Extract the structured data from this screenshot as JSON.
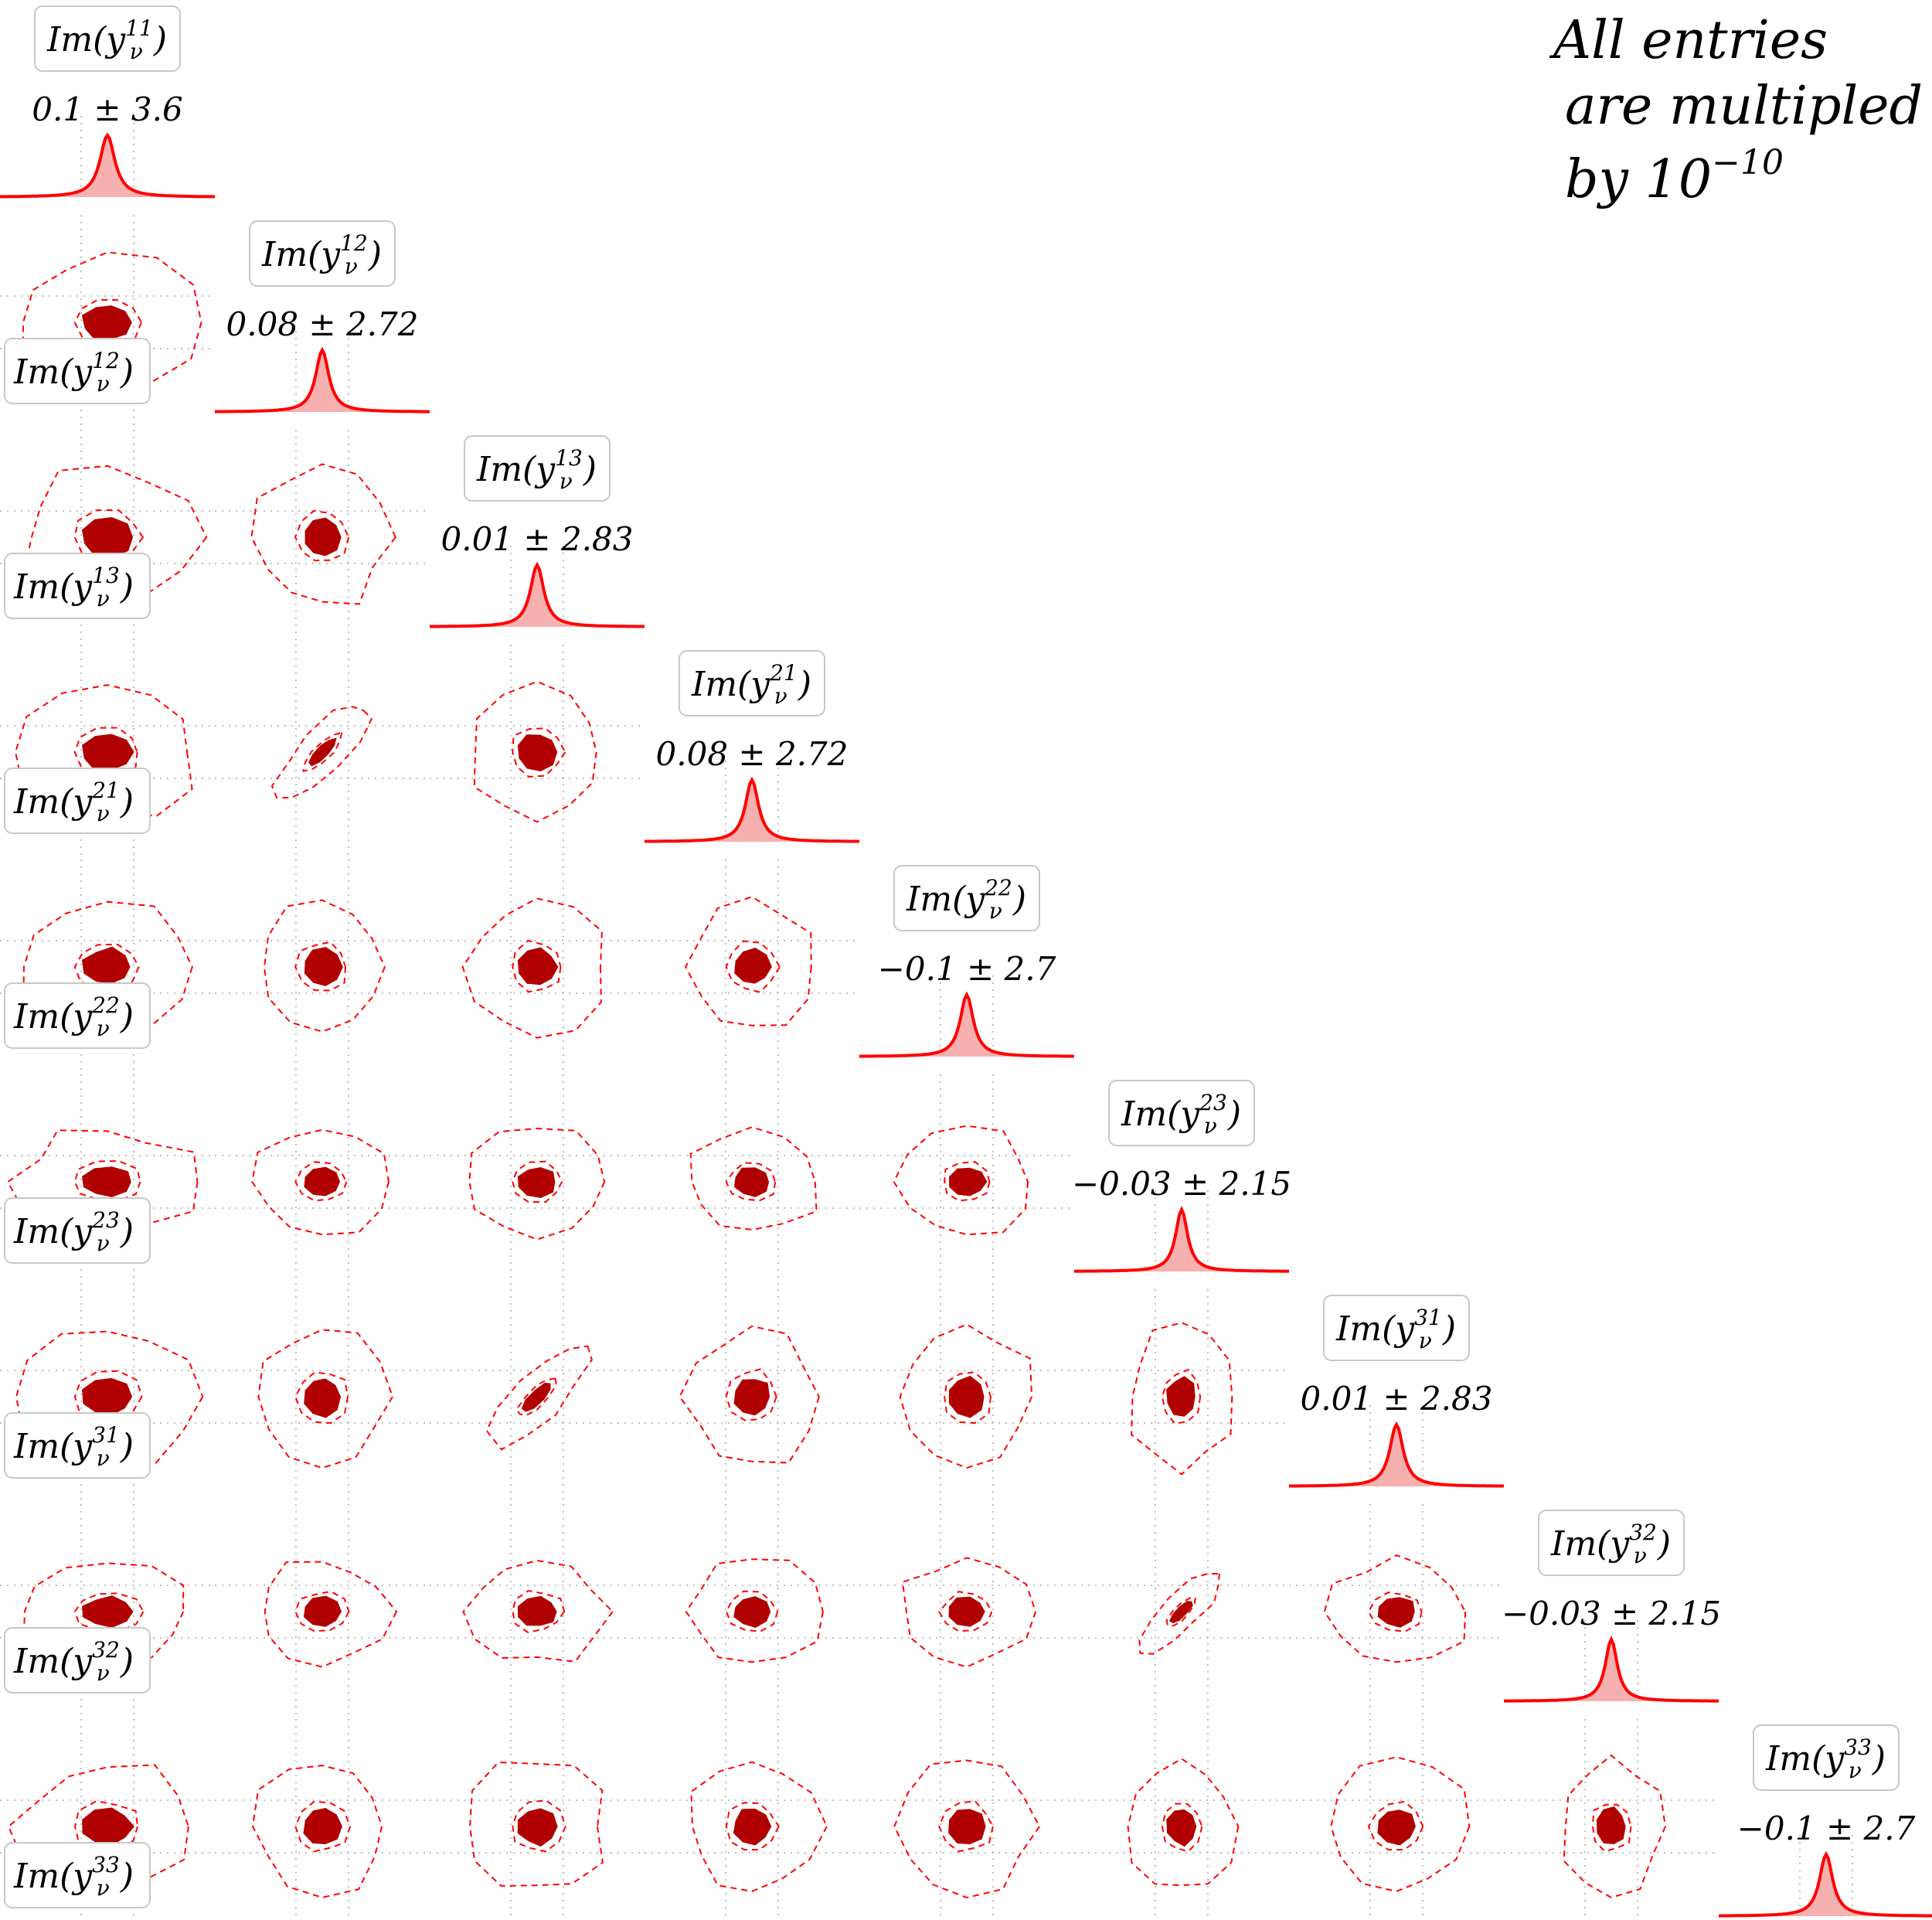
{
  "note": {
    "line1": "All entries",
    "line2": "are multipled",
    "line3_prefix": "by 10",
    "line3_exponent": "−10"
  },
  "colors": {
    "accent": "#ff0000",
    "fill_dark": "#b00000",
    "fill_light": "#f7b0b0",
    "grid": "#aaaaaa",
    "label_border": "#c8c8c8"
  },
  "chart_data": {
    "type": "corner",
    "parameters": [
      {
        "base": "Im(y",
        "sup": "11",
        "sub": "ν",
        "close": ")",
        "summary": "0.1 ± 3.6"
      },
      {
        "base": "Im(y",
        "sup": "12",
        "sub": "ν",
        "close": ")",
        "summary": "0.08 ± 2.72"
      },
      {
        "base": "Im(y",
        "sup": "13",
        "sub": "ν",
        "close": ")",
        "summary": "0.01 ± 2.83"
      },
      {
        "base": "Im(y",
        "sup": "21",
        "sub": "ν",
        "close": ")",
        "summary": "0.08 ± 2.72"
      },
      {
        "base": "Im(y",
        "sup": "22",
        "sub": "ν",
        "close": ")",
        "summary": "−0.1 ± 2.7"
      },
      {
        "base": "Im(y",
        "sup": "23",
        "sub": "ν",
        "close": ")",
        "summary": "−0.03 ± 2.15"
      },
      {
        "base": "Im(y",
        "sup": "31",
        "sub": "ν",
        "close": ")",
        "summary": "0.01 ± 2.83"
      },
      {
        "base": "Im(y",
        "sup": "32",
        "sub": "ν",
        "close": ")",
        "summary": "−0.03 ± 2.15"
      },
      {
        "base": "Im(y",
        "sup": "33",
        "sub": "ν",
        "close": ")",
        "summary": "−0.1 ± 2.7"
      }
    ],
    "means": [
      0.1,
      0.08,
      0.01,
      0.08,
      -0.1,
      -0.03,
      0.01,
      -0.03,
      -0.1
    ],
    "std_devs": [
      3.6,
      2.72,
      2.83,
      2.72,
      2.7,
      2.15,
      2.83,
      2.15,
      2.7
    ],
    "correlations": {
      "21": 0.0,
      "31": 0.0,
      "32": 0.0,
      "41": 0.0,
      "42": 0.85,
      "43": 0.0,
      "51": 0.0,
      "52": 0.0,
      "53": 0.0,
      "54": 0.0,
      "61": 0.0,
      "62": 0.0,
      "63": 0.0,
      "64": 0.0,
      "65": 0.0,
      "71": 0.0,
      "72": 0.0,
      "73": 0.85,
      "74": 0.0,
      "75": 0.0,
      "76": 0.0,
      "81": 0.0,
      "82": 0.0,
      "83": 0.0,
      "84": 0.0,
      "85": 0.0,
      "86": 0.85,
      "87": 0.0,
      "91": 0.0,
      "92": 0.0,
      "93": 0.0,
      "94": 0.0,
      "95": 0.0,
      "96": 0.0,
      "97": 0.0,
      "98": 0.0
    },
    "contour_levels": [
      "inner (dark filled)",
      "middle (dashed)",
      "outer (dashed)"
    ],
    "grid": true
  }
}
